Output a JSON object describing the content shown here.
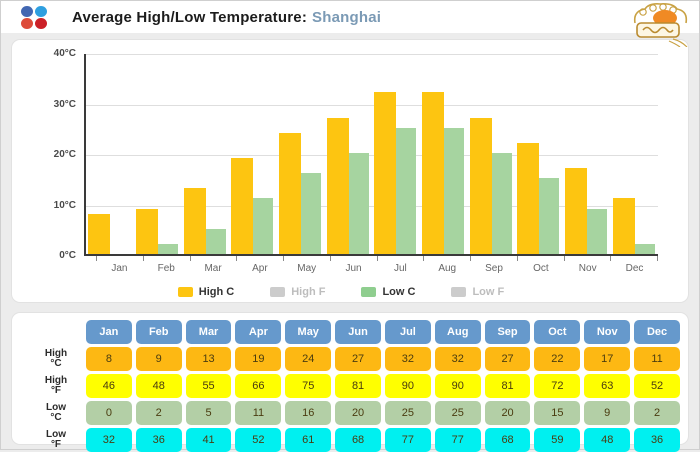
{
  "header": {
    "title": "Average High/Low Temperature:",
    "location": "Shanghai",
    "share_icons": [
      {
        "name": "share-icon-blue-1",
        "color": "#4267b2"
      },
      {
        "name": "share-icon-blue-2",
        "color": "#2e9fe0"
      },
      {
        "name": "share-icon-red-1",
        "color": "#dd4b39"
      },
      {
        "name": "share-icon-red-2",
        "color": "#cb2027"
      }
    ],
    "logo_colors": {
      "gold": "#c9a244",
      "orange": "#f08a24"
    }
  },
  "chart_data": {
    "type": "bar",
    "title": "Average High/Low Temperature: Shanghai",
    "categories": [
      "Jan",
      "Feb",
      "Mar",
      "Apr",
      "May",
      "Jun",
      "Jul",
      "Aug",
      "Sep",
      "Oct",
      "Nov",
      "Dec"
    ],
    "series": [
      {
        "name": "High C",
        "color": "#fdc511",
        "values": [
          8,
          9,
          13,
          19,
          24,
          27,
          32,
          32,
          27,
          22,
          17,
          11
        ]
      },
      {
        "name": "Low C",
        "color": "#a6d4a0",
        "values": [
          0,
          2,
          5,
          11,
          16,
          20,
          25,
          25,
          20,
          15,
          9,
          2
        ]
      }
    ],
    "hidden_series": [
      {
        "name": "High F",
        "values": [
          46,
          48,
          55,
          66,
          75,
          81,
          90,
          90,
          81,
          72,
          63,
          52
        ]
      },
      {
        "name": "Low F",
        "values": [
          32,
          36,
          41,
          52,
          61,
          68,
          77,
          77,
          68,
          59,
          48,
          36
        ]
      }
    ],
    "legend": [
      {
        "label": "High C",
        "color": "#fdc511",
        "active": true
      },
      {
        "label": "High F",
        "color": "#cccccc",
        "active": false
      },
      {
        "label": "Low C",
        "color": "#8fce8f",
        "active": true
      },
      {
        "label": "Low F",
        "color": "#cccccc",
        "active": false
      }
    ],
    "ylabel": "",
    "xlabel": "",
    "ylim": [
      0,
      40
    ],
    "y_ticks": [
      {
        "value": 0,
        "label": "0°C"
      },
      {
        "value": 10,
        "label": "10°C"
      },
      {
        "value": 20,
        "label": "20°C"
      },
      {
        "value": 30,
        "label": "30°C"
      },
      {
        "value": 40,
        "label": "40°C"
      }
    ],
    "grid": true,
    "legend_position": "bottom"
  },
  "table": {
    "columns": [
      "Jan",
      "Feb",
      "Mar",
      "Apr",
      "May",
      "Jun",
      "Jul",
      "Aug",
      "Sep",
      "Oct",
      "Nov",
      "Dec"
    ],
    "header_bg": "#6699cc",
    "rows": [
      {
        "label_line1": "High",
        "label_line2": "°C",
        "bg": "#fdb813",
        "values": [
          8,
          9,
          13,
          19,
          24,
          27,
          32,
          32,
          27,
          22,
          17,
          11
        ]
      },
      {
        "label_line1": "High",
        "label_line2": "°F",
        "bg": "#ffff00",
        "values": [
          46,
          48,
          55,
          66,
          75,
          81,
          90,
          90,
          81,
          72,
          63,
          52
        ]
      },
      {
        "label_line1": "Low",
        "label_line2": "°C",
        "bg": "#b3cfa6",
        "values": [
          0,
          2,
          5,
          11,
          16,
          20,
          25,
          25,
          20,
          15,
          9,
          2
        ]
      },
      {
        "label_line1": "Low",
        "label_line2": "°F",
        "bg": "#00f0f0",
        "values": [
          32,
          36,
          41,
          52,
          61,
          68,
          77,
          77,
          68,
          59,
          48,
          36
        ]
      }
    ]
  }
}
